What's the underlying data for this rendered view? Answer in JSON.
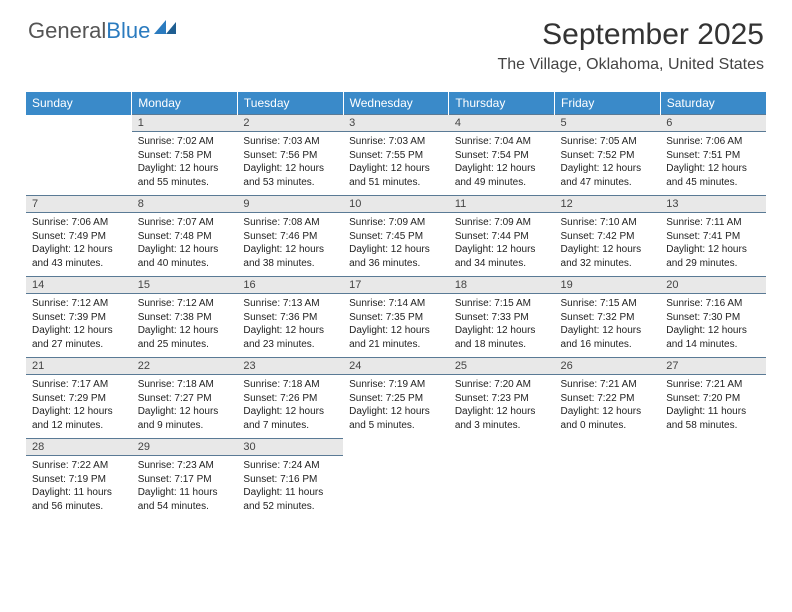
{
  "logo": {
    "text1": "General",
    "text2": "Blue"
  },
  "title": "September 2025",
  "location": "The Village, Oklahoma, United States",
  "colors": {
    "header_bg": "#3a8ac9",
    "header_text": "#ffffff",
    "daynum_bg": "#e8e8e8",
    "daynum_border": "#5a7a95",
    "body_text": "#222222",
    "logo_gray": "#555555",
    "logo_blue": "#2b7bbf"
  },
  "weekdays": [
    "Sunday",
    "Monday",
    "Tuesday",
    "Wednesday",
    "Thursday",
    "Friday",
    "Saturday"
  ],
  "weeks": [
    {
      "nums": [
        "",
        "1",
        "2",
        "3",
        "4",
        "5",
        "6"
      ],
      "cells": [
        null,
        {
          "sunrise": "7:02 AM",
          "sunset": "7:58 PM",
          "daylight": "12 hours and 55 minutes."
        },
        {
          "sunrise": "7:03 AM",
          "sunset": "7:56 PM",
          "daylight": "12 hours and 53 minutes."
        },
        {
          "sunrise": "7:03 AM",
          "sunset": "7:55 PM",
          "daylight": "12 hours and 51 minutes."
        },
        {
          "sunrise": "7:04 AM",
          "sunset": "7:54 PM",
          "daylight": "12 hours and 49 minutes."
        },
        {
          "sunrise": "7:05 AM",
          "sunset": "7:52 PM",
          "daylight": "12 hours and 47 minutes."
        },
        {
          "sunrise": "7:06 AM",
          "sunset": "7:51 PM",
          "daylight": "12 hours and 45 minutes."
        }
      ]
    },
    {
      "nums": [
        "7",
        "8",
        "9",
        "10",
        "11",
        "12",
        "13"
      ],
      "cells": [
        {
          "sunrise": "7:06 AM",
          "sunset": "7:49 PM",
          "daylight": "12 hours and 43 minutes."
        },
        {
          "sunrise": "7:07 AM",
          "sunset": "7:48 PM",
          "daylight": "12 hours and 40 minutes."
        },
        {
          "sunrise": "7:08 AM",
          "sunset": "7:46 PM",
          "daylight": "12 hours and 38 minutes."
        },
        {
          "sunrise": "7:09 AM",
          "sunset": "7:45 PM",
          "daylight": "12 hours and 36 minutes."
        },
        {
          "sunrise": "7:09 AM",
          "sunset": "7:44 PM",
          "daylight": "12 hours and 34 minutes."
        },
        {
          "sunrise": "7:10 AM",
          "sunset": "7:42 PM",
          "daylight": "12 hours and 32 minutes."
        },
        {
          "sunrise": "7:11 AM",
          "sunset": "7:41 PM",
          "daylight": "12 hours and 29 minutes."
        }
      ]
    },
    {
      "nums": [
        "14",
        "15",
        "16",
        "17",
        "18",
        "19",
        "20"
      ],
      "cells": [
        {
          "sunrise": "7:12 AM",
          "sunset": "7:39 PM",
          "daylight": "12 hours and 27 minutes."
        },
        {
          "sunrise": "7:12 AM",
          "sunset": "7:38 PM",
          "daylight": "12 hours and 25 minutes."
        },
        {
          "sunrise": "7:13 AM",
          "sunset": "7:36 PM",
          "daylight": "12 hours and 23 minutes."
        },
        {
          "sunrise": "7:14 AM",
          "sunset": "7:35 PM",
          "daylight": "12 hours and 21 minutes."
        },
        {
          "sunrise": "7:15 AM",
          "sunset": "7:33 PM",
          "daylight": "12 hours and 18 minutes."
        },
        {
          "sunrise": "7:15 AM",
          "sunset": "7:32 PM",
          "daylight": "12 hours and 16 minutes."
        },
        {
          "sunrise": "7:16 AM",
          "sunset": "7:30 PM",
          "daylight": "12 hours and 14 minutes."
        }
      ]
    },
    {
      "nums": [
        "21",
        "22",
        "23",
        "24",
        "25",
        "26",
        "27"
      ],
      "cells": [
        {
          "sunrise": "7:17 AM",
          "sunset": "7:29 PM",
          "daylight": "12 hours and 12 minutes."
        },
        {
          "sunrise": "7:18 AM",
          "sunset": "7:27 PM",
          "daylight": "12 hours and 9 minutes."
        },
        {
          "sunrise": "7:18 AM",
          "sunset": "7:26 PM",
          "daylight": "12 hours and 7 minutes."
        },
        {
          "sunrise": "7:19 AM",
          "sunset": "7:25 PM",
          "daylight": "12 hours and 5 minutes."
        },
        {
          "sunrise": "7:20 AM",
          "sunset": "7:23 PM",
          "daylight": "12 hours and 3 minutes."
        },
        {
          "sunrise": "7:21 AM",
          "sunset": "7:22 PM",
          "daylight": "12 hours and 0 minutes."
        },
        {
          "sunrise": "7:21 AM",
          "sunset": "7:20 PM",
          "daylight": "11 hours and 58 minutes."
        }
      ]
    },
    {
      "nums": [
        "28",
        "29",
        "30",
        "",
        "",
        "",
        ""
      ],
      "cells": [
        {
          "sunrise": "7:22 AM",
          "sunset": "7:19 PM",
          "daylight": "11 hours and 56 minutes."
        },
        {
          "sunrise": "7:23 AM",
          "sunset": "7:17 PM",
          "daylight": "11 hours and 54 minutes."
        },
        {
          "sunrise": "7:24 AM",
          "sunset": "7:16 PM",
          "daylight": "11 hours and 52 minutes."
        },
        null,
        null,
        null,
        null
      ]
    }
  ],
  "labels": {
    "sunrise": "Sunrise:",
    "sunset": "Sunset:",
    "daylight": "Daylight:"
  }
}
